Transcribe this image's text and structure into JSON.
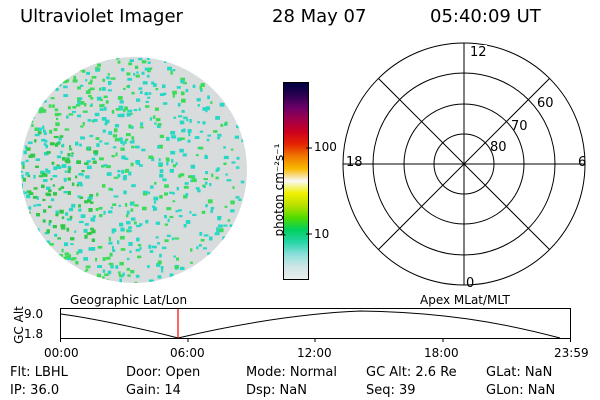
{
  "header": {
    "instrument": "Ultraviolet Imager",
    "date": "28 May 07",
    "time": "05:40:09 UT"
  },
  "colorbar": {
    "unit_label": "photon cm⁻²s⁻¹",
    "tick_labels": [
      "100",
      "10"
    ],
    "tick_values": [
      100,
      10
    ],
    "colors": [
      "#000040",
      "#2a0050",
      "#6a0068",
      "#a00048",
      "#cc0020",
      "#e62400",
      "#f07a00",
      "#f8b800",
      "#f8f8f8",
      "#f0f000",
      "#b8e000",
      "#50dc00",
      "#00d060",
      "#28d4a8",
      "#8ce0dc",
      "#d0e6e6",
      "#e8eeee"
    ]
  },
  "image_panel": {
    "colors": {
      "background_gray": "#d8dcdc",
      "cyan": "#28d8c4",
      "green": "#3cdc5a",
      "deep_green": "#30c848"
    }
  },
  "polar_plot": {
    "mlt_labels": {
      "top": "12",
      "right": "6",
      "bottom": "0",
      "left": "18"
    },
    "lat_labels": [
      "60",
      "70",
      "80"
    ]
  },
  "timeline": {
    "left_title": "Geographic Lat/Lon",
    "right_title": "Apex MLat/MLT",
    "y_axis_label": "GC Alt",
    "y_ticks": [
      "9.0",
      "1.8"
    ],
    "x_ticks": [
      "00:00",
      "06:00",
      "12:00",
      "18:00",
      "23:59"
    ],
    "current_time_marker": "05:40",
    "marker_color": "#ff0000"
  },
  "status": {
    "flt": "Flt: LBHL",
    "ip": "IP: 36.0",
    "door": "Door: Open",
    "gain": "Gain: 14",
    "mode": "Mode: Normal",
    "dsp": "Dsp:    NaN",
    "gc_alt": "GC Alt: 2.6 Re",
    "seq": "Seq: 39",
    "glat": "GLat:     NaN",
    "glon": "GLon:     NaN"
  }
}
